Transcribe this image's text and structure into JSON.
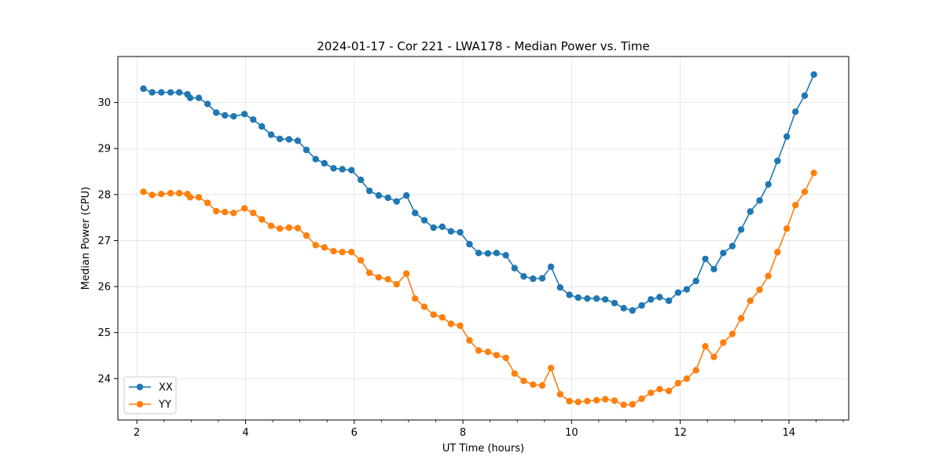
{
  "chart_data": {
    "type": "line",
    "title": "2024-01-17 - Cor 221 - LWA178 - Median Power vs. Time",
    "xlabel": "UT Time (hours)",
    "ylabel": "Median Power (CPU)",
    "xlim": [
      1.65,
      15.1
    ],
    "ylim": [
      23.1,
      31.0
    ],
    "xticks": [
      2,
      4,
      6,
      8,
      10,
      12,
      14
    ],
    "xtick_labels": [
      "2",
      "4",
      "6",
      "8",
      "10",
      "12",
      "14"
    ],
    "yticks": [
      24,
      25,
      26,
      27,
      28,
      29,
      30
    ],
    "ytick_labels": [
      "24",
      "25",
      "26",
      "27",
      "28",
      "29",
      "30"
    ],
    "grid": true,
    "legend_position": "lower-left",
    "x": [
      2.12,
      2.28,
      2.45,
      2.62,
      2.78,
      2.93,
      2.98,
      3.14,
      3.3,
      3.46,
      3.62,
      3.78,
      3.98,
      4.14,
      4.3,
      4.47,
      4.63,
      4.8,
      4.96,
      5.12,
      5.29,
      5.45,
      5.62,
      5.78,
      5.95,
      6.12,
      6.28,
      6.45,
      6.62,
      6.78,
      6.96,
      7.12,
      7.29,
      7.46,
      7.62,
      7.78,
      7.95,
      8.12,
      8.29,
      8.46,
      8.62,
      8.79,
      8.95,
      9.12,
      9.29,
      9.46,
      9.62,
      9.79,
      9.96,
      10.12,
      10.29,
      10.46,
      10.62,
      10.79,
      10.96,
      11.12,
      11.29,
      11.46,
      11.62,
      11.79,
      11.96,
      12.12,
      12.29,
      12.46,
      12.62,
      12.79,
      12.96,
      13.12,
      13.29,
      13.46,
      13.62,
      13.79,
      13.96,
      14.12,
      14.29,
      14.46
    ],
    "series": [
      {
        "name": "XX",
        "color": "#1f77b4",
        "values": [
          30.3,
          30.22,
          30.22,
          30.22,
          30.22,
          30.18,
          30.1,
          30.1,
          29.97,
          29.78,
          29.72,
          29.7,
          29.75,
          29.63,
          29.48,
          29.3,
          29.21,
          29.2,
          29.17,
          28.97,
          28.77,
          28.68,
          28.57,
          28.55,
          28.53,
          28.32,
          28.08,
          27.98,
          27.93,
          27.85,
          27.98,
          27.6,
          27.44,
          27.28,
          27.3,
          27.2,
          27.18,
          26.92,
          26.73,
          26.72,
          26.73,
          26.68,
          26.4,
          26.22,
          26.17,
          26.18,
          26.43,
          25.98,
          25.82,
          25.76,
          25.74,
          25.74,
          25.72,
          25.64,
          25.53,
          25.48,
          25.59,
          25.72,
          25.77,
          25.69,
          25.87,
          25.94,
          26.12,
          26.6,
          26.38,
          26.73,
          26.88,
          27.24,
          27.63,
          27.87,
          28.22,
          28.73,
          29.26,
          29.8,
          30.15,
          30.61
        ]
      },
      {
        "name": "YY",
        "color": "#ff7f0e",
        "values": [
          28.06,
          27.99,
          28.01,
          28.03,
          28.03,
          28.01,
          27.94,
          27.94,
          27.82,
          27.64,
          27.62,
          27.6,
          27.7,
          27.6,
          27.46,
          27.32,
          27.26,
          27.28,
          27.27,
          27.11,
          26.9,
          26.85,
          26.77,
          26.75,
          26.75,
          26.57,
          26.3,
          26.2,
          26.16,
          26.05,
          26.28,
          25.74,
          25.56,
          25.39,
          25.33,
          25.19,
          25.15,
          24.83,
          24.61,
          24.58,
          24.51,
          24.45,
          24.11,
          23.95,
          23.87,
          23.85,
          24.23,
          23.66,
          23.51,
          23.49,
          23.51,
          23.53,
          23.55,
          23.52,
          23.43,
          23.44,
          23.56,
          23.69,
          23.77,
          23.73,
          23.9,
          24.0,
          24.18,
          24.7,
          24.47,
          24.78,
          24.97,
          25.31,
          25.69,
          25.93,
          26.23,
          26.75,
          27.26,
          27.77,
          28.06,
          28.47
        ]
      }
    ]
  }
}
